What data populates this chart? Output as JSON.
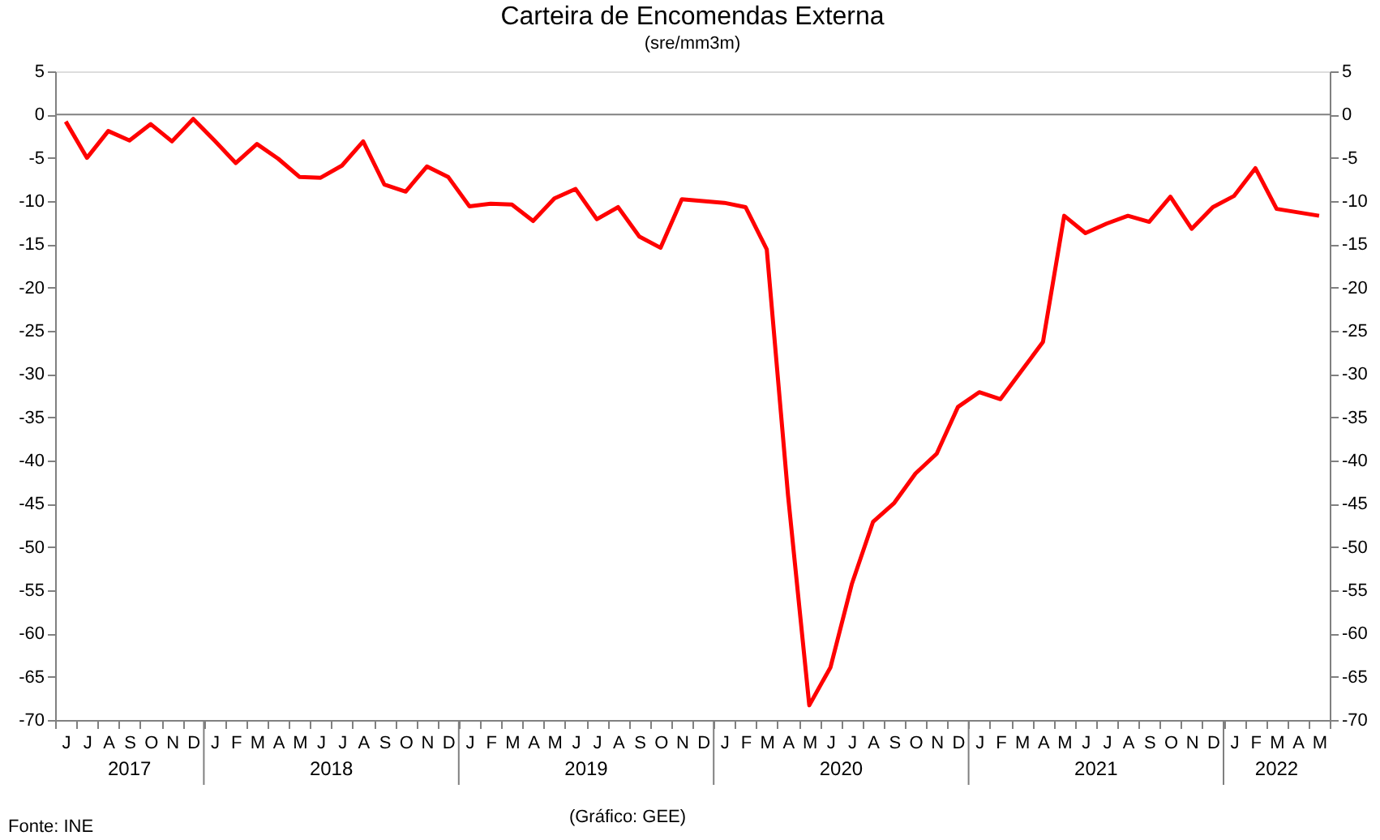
{
  "chart_data": {
    "type": "line",
    "title": "Carteira de Encomendas Externa",
    "subtitle": "(sre/mm3m)",
    "categories": [
      "J",
      "J",
      "A",
      "S",
      "O",
      "N",
      "D",
      "J",
      "F",
      "M",
      "A",
      "M",
      "J",
      "J",
      "A",
      "S",
      "O",
      "N",
      "D",
      "J",
      "F",
      "M",
      "A",
      "M",
      "J",
      "J",
      "A",
      "S",
      "O",
      "N",
      "D",
      "J",
      "F",
      "M",
      "A",
      "M",
      "J",
      "J",
      "A",
      "S",
      "O",
      "N",
      "D",
      "J",
      "F",
      "M",
      "A",
      "M",
      "J",
      "J",
      "A",
      "S",
      "O",
      "N",
      "D",
      "J",
      "F",
      "M",
      "A",
      "M"
    ],
    "series": [
      {
        "color": "#ff0000",
        "values": [
          -0.8,
          -5.0,
          -1.9,
          -3.0,
          -1.1,
          -3.1,
          -0.5,
          -3.0,
          -5.6,
          -3.4,
          -5.1,
          -7.2,
          -7.3,
          -5.9,
          -3.1,
          -8.1,
          -8.9,
          -6.0,
          -7.2,
          -10.6,
          -10.3,
          -10.4,
          -12.3,
          -9.7,
          -8.6,
          -12.1,
          -10.7,
          -14.1,
          -15.4,
          -9.8,
          -10.0,
          -10.2,
          -10.7,
          -15.6,
          -44.0,
          -68.3,
          -63.9,
          -54.3,
          -47.1,
          -44.9,
          -41.5,
          -39.2,
          -33.8,
          -32.1,
          -32.9,
          -29.6,
          -26.3,
          -11.7,
          -13.7,
          -12.6,
          -11.7,
          -12.4,
          -9.5,
          -13.2,
          -10.7,
          -9.4,
          -6.2,
          -10.9,
          -11.3,
          -11.7
        ]
      }
    ],
    "ylim": [
      -70,
      5
    ],
    "yticks": [
      -70,
      -65,
      -60,
      -55,
      -50,
      -45,
      -40,
      -35,
      -30,
      -25,
      -20,
      -15,
      -10,
      -5,
      0,
      5
    ],
    "y2lim": [
      -70,
      5
    ],
    "y2ticks": [
      -70,
      -65,
      -60,
      -55,
      -50,
      -45,
      -40,
      -35,
      -30,
      -25,
      -20,
      -15,
      -10,
      -5,
      0,
      5
    ],
    "ref_lines": [
      {
        "axis": "y",
        "value": 0,
        "color": "#808080"
      }
    ],
    "annotations": [
      "2017",
      "2018",
      "2019",
      "2020",
      "2021",
      "2022",
      "Fonte: INE",
      "(Gráfico: GEE)"
    ],
    "grid": false,
    "marker": "none",
    "line_style": "solid"
  }
}
